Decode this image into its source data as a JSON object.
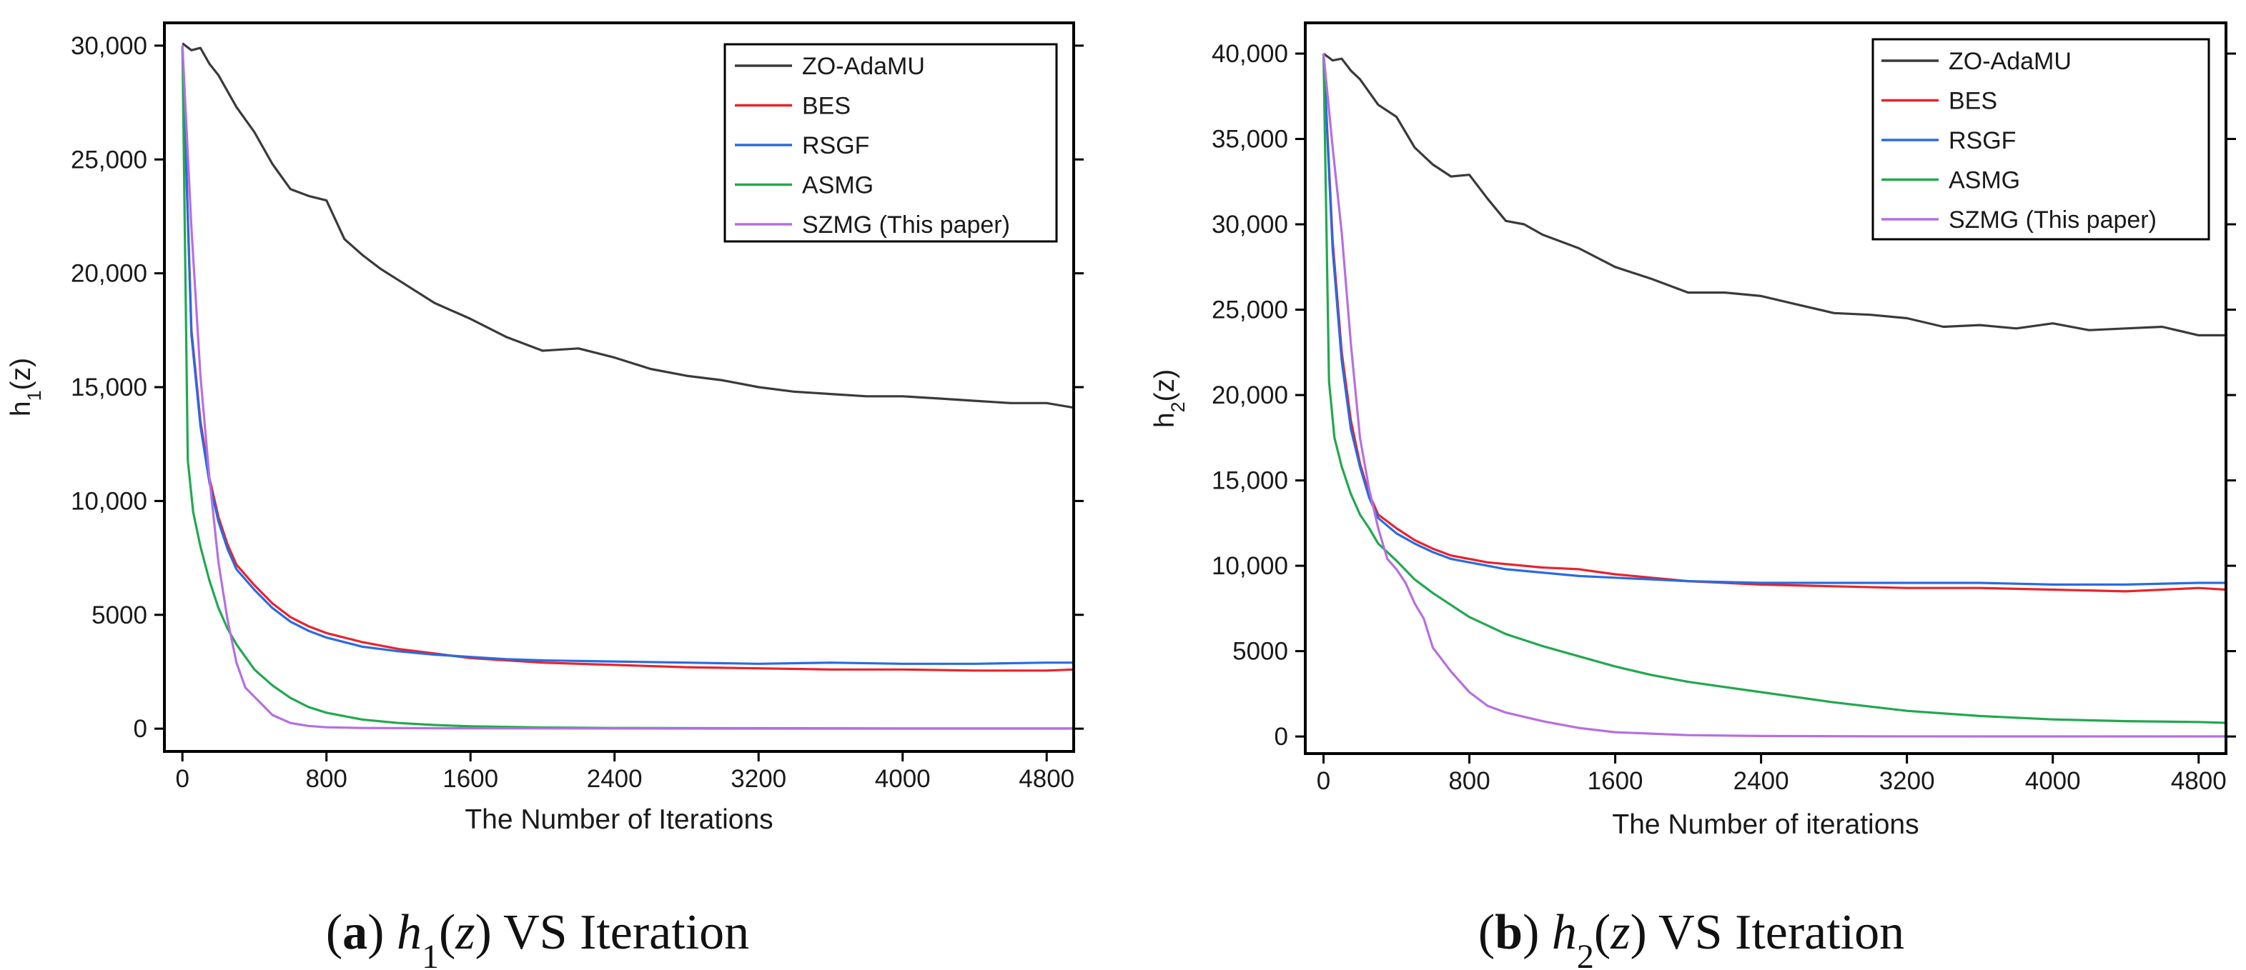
{
  "chart_data": [
    {
      "type": "line",
      "caption": {
        "tag": "a",
        "h": "h",
        "sub": "1",
        "z": "z",
        "rest": " VS Iteration"
      },
      "xlabel": "The Number of Iterations",
      "ylabel": {
        "base": "h",
        "sub": "1",
        "tail": "(z)"
      },
      "xlim": [
        -100,
        4950
      ],
      "ylim": [
        -1000,
        31000
      ],
      "xticks": [
        0,
        800,
        1600,
        2400,
        3200,
        4000,
        4800
      ],
      "xtick_labels": [
        "0",
        "800",
        "1600",
        "2400",
        "3200",
        "4000",
        "4800"
      ],
      "yticks": [
        0,
        5000,
        10000,
        15000,
        20000,
        25000,
        30000
      ],
      "ytick_labels": [
        "0",
        "5000",
        "10,000",
        "15,000",
        "20,000",
        "25,000",
        "30,000"
      ],
      "legend_position": "top-right",
      "series": [
        {
          "name": "ZO-AdaMU",
          "color": "#3a3a3a",
          "x": [
            0,
            50,
            100,
            150,
            200,
            300,
            400,
            500,
            600,
            700,
            800,
            900,
            1000,
            1100,
            1200,
            1400,
            1600,
            1800,
            2000,
            2200,
            2400,
            2600,
            2800,
            3000,
            3200,
            3400,
            3600,
            3800,
            4000,
            4200,
            4400,
            4600,
            4800,
            4950
          ],
          "y": [
            30100,
            29800,
            29900,
            29200,
            28700,
            27300,
            26200,
            24800,
            23700,
            23400,
            23200,
            21500,
            20800,
            20200,
            19700,
            18700,
            18000,
            17200,
            16600,
            16700,
            16300,
            15800,
            15500,
            15300,
            15000,
            14800,
            14700,
            14600,
            14600,
            14500,
            14400,
            14300,
            14300,
            14100
          ]
        },
        {
          "name": "BES",
          "color": "#e8232c",
          "x": [
            0,
            50,
            100,
            150,
            200,
            250,
            300,
            400,
            500,
            600,
            700,
            800,
            1000,
            1200,
            1400,
            1600,
            1800,
            2000,
            2400,
            2800,
            3200,
            3600,
            4000,
            4400,
            4800,
            4950
          ],
          "y": [
            30000,
            17500,
            13500,
            11000,
            9300,
            8100,
            7200,
            6300,
            5500,
            4900,
            4500,
            4200,
            3800,
            3500,
            3300,
            3100,
            3000,
            2900,
            2800,
            2700,
            2650,
            2600,
            2600,
            2550,
            2550,
            2600
          ]
        },
        {
          "name": "RSGF",
          "color": "#2a6be0",
          "x": [
            0,
            50,
            100,
            150,
            200,
            250,
            300,
            400,
            500,
            600,
            700,
            800,
            1000,
            1200,
            1400,
            1600,
            1800,
            2000,
            2400,
            2800,
            3200,
            3600,
            4000,
            4400,
            4800,
            4950
          ],
          "y": [
            30000,
            17300,
            13300,
            10800,
            9100,
            7900,
            7000,
            6100,
            5300,
            4700,
            4300,
            4000,
            3600,
            3400,
            3250,
            3150,
            3050,
            3000,
            2950,
            2900,
            2850,
            2900,
            2850,
            2850,
            2900,
            2900
          ]
        },
        {
          "name": "ASMG",
          "color": "#22a84f",
          "x": [
            0,
            30,
            60,
            100,
            150,
            200,
            250,
            300,
            400,
            500,
            600,
            700,
            800,
            1000,
            1200,
            1400,
            1600,
            2000,
            2400,
            3000,
            4000,
            4950
          ],
          "y": [
            30000,
            11800,
            9500,
            8000,
            6500,
            5300,
            4400,
            3700,
            2600,
            1900,
            1350,
            950,
            700,
            400,
            250,
            160,
            100,
            50,
            30,
            20,
            10,
            10
          ]
        },
        {
          "name": "SZMG (This paper)",
          "color": "#b66fe0",
          "x": [
            0,
            50,
            100,
            150,
            200,
            250,
            300,
            350,
            400,
            450,
            500,
            600,
            700,
            800,
            1000,
            1500,
            2000,
            3000,
            4000,
            4950
          ],
          "y": [
            30000,
            22000,
            15500,
            11000,
            7300,
            4800,
            2900,
            1800,
            1400,
            1000,
            600,
            250,
            120,
            60,
            30,
            15,
            10,
            5,
            5,
            5
          ]
        }
      ]
    },
    {
      "type": "line",
      "caption": {
        "tag": "b",
        "h": "h",
        "sub": "2",
        "z": "z",
        "rest": " VS Iteration"
      },
      "xlabel": "The Number of iterations",
      "ylabel": {
        "base": "h",
        "sub": "2",
        "tail": "(z)"
      },
      "xlim": [
        -100,
        4950
      ],
      "ylim": [
        -1000,
        41800
      ],
      "xticks": [
        0,
        800,
        1600,
        2400,
        3200,
        4000,
        4800
      ],
      "xtick_labels": [
        "0",
        "800",
        "1600",
        "2400",
        "3200",
        "4000",
        "4800"
      ],
      "yticks": [
        0,
        5000,
        10000,
        15000,
        20000,
        25000,
        30000,
        35000,
        40000
      ],
      "ytick_labels": [
        "0",
        "5000",
        "10,000",
        "15,000",
        "20,000",
        "25,000",
        "30,000",
        "35,000",
        "40,000"
      ],
      "legend_position": "top-right",
      "series": [
        {
          "name": "ZO-AdaMU",
          "color": "#3a3a3a",
          "x": [
            0,
            50,
            100,
            150,
            200,
            300,
            400,
            500,
            600,
            700,
            800,
            900,
            1000,
            1100,
            1200,
            1400,
            1600,
            1800,
            2000,
            2200,
            2400,
            2600,
            2800,
            3000,
            3200,
            3400,
            3600,
            3800,
            4000,
            4200,
            4400,
            4600,
            4800,
            4950
          ],
          "y": [
            40000,
            39600,
            39700,
            39000,
            38500,
            37000,
            36300,
            34500,
            33500,
            32800,
            32900,
            31500,
            30200,
            30000,
            29400,
            28600,
            27500,
            26800,
            26000,
            26000,
            25800,
            25300,
            24800,
            24700,
            24500,
            24000,
            24100,
            23900,
            24200,
            23800,
            23900,
            24000,
            23500,
            23500
          ]
        },
        {
          "name": "BES",
          "color": "#e8232c",
          "x": [
            0,
            50,
            100,
            150,
            200,
            250,
            300,
            400,
            500,
            600,
            700,
            800,
            900,
            1000,
            1200,
            1400,
            1600,
            1800,
            2000,
            2400,
            2800,
            3200,
            3600,
            4000,
            4400,
            4800,
            4950
          ],
          "y": [
            40000,
            29000,
            22500,
            18500,
            16000,
            14200,
            13000,
            12200,
            11500,
            11000,
            10600,
            10400,
            10200,
            10100,
            9900,
            9800,
            9500,
            9300,
            9100,
            8900,
            8800,
            8700,
            8700,
            8600,
            8500,
            8700,
            8600
          ]
        },
        {
          "name": "RSGF",
          "color": "#2a6be0",
          "x": [
            0,
            50,
            100,
            150,
            200,
            250,
            300,
            400,
            500,
            600,
            700,
            800,
            900,
            1000,
            1200,
            1400,
            1600,
            1800,
            2000,
            2400,
            2800,
            3200,
            3600,
            4000,
            4400,
            4800,
            4950
          ],
          "y": [
            40000,
            28500,
            22000,
            18000,
            15800,
            14000,
            12800,
            11900,
            11300,
            10800,
            10400,
            10200,
            10000,
            9800,
            9600,
            9400,
            9300,
            9200,
            9100,
            9000,
            9000,
            9000,
            9000,
            8900,
            8900,
            9000,
            9000
          ]
        },
        {
          "name": "ASMG",
          "color": "#22a84f",
          "x": [
            0,
            30,
            60,
            100,
            150,
            200,
            250,
            300,
            400,
            500,
            600,
            700,
            800,
            900,
            1000,
            1200,
            1400,
            1600,
            1800,
            2000,
            2400,
            2800,
            3200,
            3600,
            4000,
            4400,
            4800,
            4950
          ],
          "y": [
            40000,
            20800,
            17500,
            15800,
            14200,
            13000,
            12200,
            11300,
            10300,
            9200,
            8400,
            7700,
            7000,
            6500,
            6000,
            5300,
            4700,
            4100,
            3600,
            3200,
            2600,
            2000,
            1500,
            1200,
            1000,
            900,
            850,
            800
          ]
        },
        {
          "name": "SZMG (This paper)",
          "color": "#b66fe0",
          "x": [
            0,
            50,
            100,
            150,
            200,
            250,
            300,
            350,
            400,
            450,
            500,
            550,
            600,
            700,
            800,
            900,
            1000,
            1200,
            1400,
            1600,
            2000,
            2400,
            3000,
            4000,
            4950
          ],
          "y": [
            40000,
            34500,
            29500,
            23000,
            17500,
            14500,
            12200,
            10400,
            9800,
            9000,
            7800,
            6900,
            5200,
            3800,
            2600,
            1800,
            1400,
            900,
            500,
            250,
            80,
            30,
            10,
            5,
            5
          ]
        }
      ]
    }
  ]
}
